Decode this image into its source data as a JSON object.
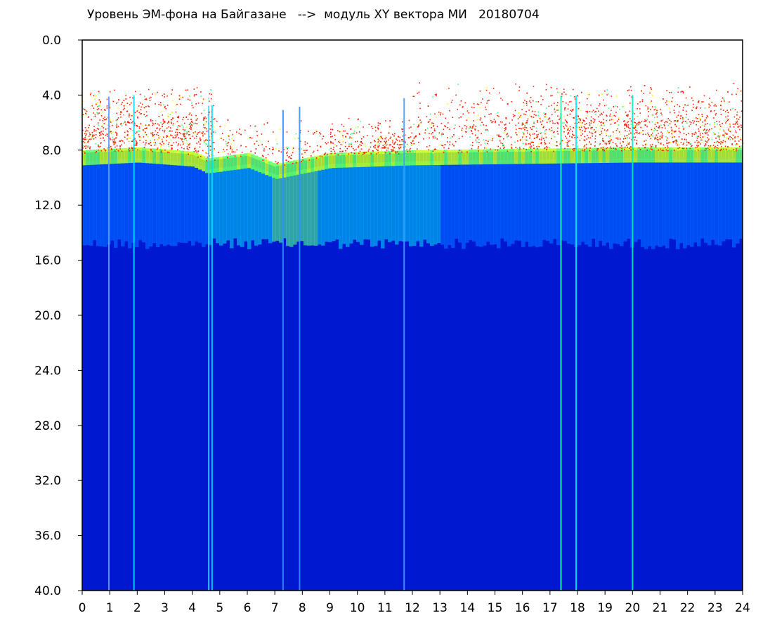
{
  "chart_data": {
    "type": "heatmap",
    "title": "Уровень ЭМ-фона на Байгазане   -->  модуль XY вектора МИ   20180704",
    "xlabel": "",
    "ylabel": "",
    "xlim": [
      0,
      24
    ],
    "ylim": [
      0.0,
      40.0
    ],
    "y_inverted": true,
    "x_ticks": [
      "0",
      "1",
      "2",
      "3",
      "4",
      "5",
      "6",
      "7",
      "8",
      "9",
      "10",
      "11",
      "12",
      "13",
      "14",
      "15",
      "16",
      "17",
      "18",
      "19",
      "20",
      "21",
      "22",
      "23",
      "24"
    ],
    "y_ticks": [
      "0.0",
      "4.0",
      "8.0",
      "12.0",
      "16.0",
      "20.0",
      "24.0",
      "28.0",
      "32.0",
      "36.0",
      "40.0"
    ],
    "colormap": [
      "#0018d0",
      "#0050ff",
      "#00c8f0",
      "#40ff80",
      "#ffff00",
      "#ff2000"
    ],
    "background_color": "#0018d0",
    "noise_floor_y": [
      {
        "x": 0,
        "y": 8.2
      },
      {
        "x": 2,
        "y": 8.0
      },
      {
        "x": 4,
        "y": 8.3
      },
      {
        "x": 4.5,
        "y": 8.8
      },
      {
        "x": 6,
        "y": 8.4
      },
      {
        "x": 7,
        "y": 9.2
      },
      {
        "x": 8,
        "y": 8.8
      },
      {
        "x": 9,
        "y": 8.4
      },
      {
        "x": 12,
        "y": 8.2
      },
      {
        "x": 16,
        "y": 8.1
      },
      {
        "x": 20,
        "y": 8.0
      },
      {
        "x": 24,
        "y": 8.0
      }
    ],
    "cyan_band_bottom_y": 14.8,
    "vertical_lines": [
      {
        "x": 0.97,
        "color": "#60a0ff"
      },
      {
        "x": 1.88,
        "color": "#00e0ff"
      },
      {
        "x": 4.6,
        "color": "#40d0ff"
      },
      {
        "x": 4.72,
        "color": "#00e0ff"
      },
      {
        "x": 7.3,
        "color": "#3090ff"
      },
      {
        "x": 7.9,
        "color": "#3090ff"
      },
      {
        "x": 11.7,
        "color": "#40a0ff"
      },
      {
        "x": 17.4,
        "color": "#20ffb0"
      },
      {
        "x": 17.95,
        "color": "#00f0ff"
      },
      {
        "x": 20.0,
        "color": "#00f0c0"
      }
    ]
  }
}
